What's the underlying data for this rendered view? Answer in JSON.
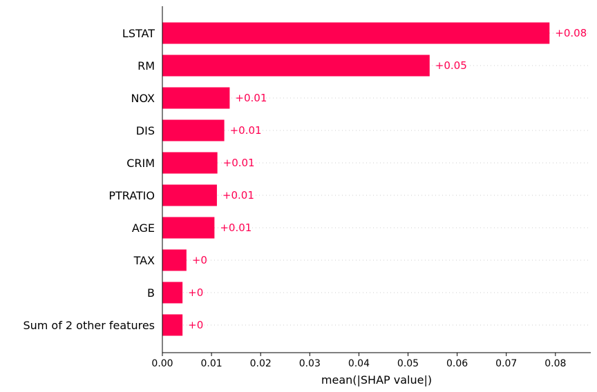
{
  "chart_data": {
    "type": "bar",
    "orientation": "horizontal",
    "title": "",
    "xlabel": "mean(|SHAP value|)",
    "ylabel": "",
    "categories": [
      "LSTAT",
      "RM",
      "NOX",
      "DIS",
      "CRIM",
      "PTRATIO",
      "AGE",
      "TAX",
      "B",
      "Sum of 2 other features"
    ],
    "values": [
      0.0788,
      0.0544,
      0.0137,
      0.0126,
      0.0112,
      0.0111,
      0.0106,
      0.0049,
      0.0041,
      0.0041
    ],
    "data_labels": [
      "+0.08",
      "+0.05",
      "+0.01",
      "+0.01",
      "+0.01",
      "+0.01",
      "+0.01",
      "+0",
      "+0",
      "+0"
    ],
    "xlim": [
      0,
      0.0872
    ],
    "xticks": [
      0.0,
      0.01,
      0.02,
      0.03,
      0.04,
      0.05,
      0.06,
      0.07,
      0.08
    ],
    "xtick_labels": [
      "0.00",
      "0.01",
      "0.02",
      "0.03",
      "0.04",
      "0.05",
      "0.06",
      "0.07",
      "0.08"
    ],
    "grid": "dotted horizontal row guides",
    "colors": {
      "bar": "#ff0051",
      "label": "#ff0051",
      "grid": "#cccccc",
      "axis": "#000000"
    }
  }
}
